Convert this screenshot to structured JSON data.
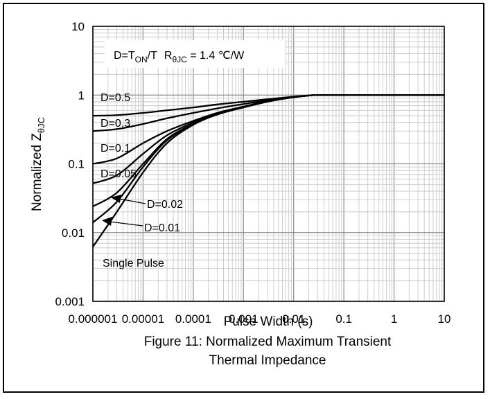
{
  "chart_data": {
    "type": "line",
    "x_scale": "log",
    "y_scale": "log",
    "xlim": [
      1e-06,
      10
    ],
    "ylim": [
      0.001,
      10
    ],
    "grid": true,
    "xlabel": "Pulse Width (s)",
    "ylabel": {
      "main": "Normalized Z",
      "sub": "θJC"
    },
    "x_ticks": [
      "0.000001",
      "0.00001",
      "0.0001",
      "0.001",
      "0.01",
      "0.1",
      "1",
      "10"
    ],
    "y_ticks": [
      "10",
      "1",
      "0.1",
      "0.01",
      "0.001"
    ],
    "annotation": {
      "d_part": "D=T",
      "d_sub": "ON",
      "d_tail": "/T",
      "r_part": "R",
      "r_sub": "θJC",
      "r_tail": " = 1.4 ℃/W"
    },
    "caption_line1": "Figure 11: Normalized Maximum Transient",
    "caption_line2": "Thermal Impedance",
    "series": [
      {
        "name": "D=0.5",
        "x": [
          1e-06,
          3e-06,
          1e-05,
          3e-05,
          0.0001,
          0.0003,
          0.001,
          0.003,
          0.01,
          0.025,
          10
        ],
        "y": [
          0.5,
          0.51,
          0.55,
          0.6,
          0.66,
          0.73,
          0.8,
          0.87,
          0.95,
          1.0,
          1.0
        ]
      },
      {
        "name": "D=0.3",
        "x": [
          1e-06,
          3e-06,
          1e-05,
          3e-05,
          0.0001,
          0.0003,
          0.001,
          0.003,
          0.01,
          0.025,
          10
        ],
        "y": [
          0.3,
          0.32,
          0.38,
          0.46,
          0.55,
          0.64,
          0.74,
          0.84,
          0.94,
          1.0,
          1.0
        ]
      },
      {
        "name": "D=0.1",
        "x": [
          1e-06,
          3e-06,
          1e-05,
          3e-05,
          0.0001,
          0.0003,
          0.001,
          0.003,
          0.01,
          0.025,
          10
        ],
        "y": [
          0.1,
          0.12,
          0.2,
          0.3,
          0.42,
          0.55,
          0.68,
          0.82,
          0.93,
          1.0,
          1.0
        ]
      },
      {
        "name": "D=0.05",
        "x": [
          1e-06,
          3e-06,
          1e-05,
          3e-05,
          0.0001,
          0.0003,
          0.001,
          0.003,
          0.01,
          0.025,
          10
        ],
        "y": [
          0.052,
          0.068,
          0.14,
          0.26,
          0.4,
          0.54,
          0.67,
          0.81,
          0.93,
          1.0,
          1.0
        ]
      },
      {
        "name": "D=0.02",
        "x": [
          1e-06,
          3e-06,
          1e-05,
          3e-05,
          0.0001,
          0.0003,
          0.001,
          0.003,
          0.01,
          0.025,
          10
        ],
        "y": [
          0.024,
          0.038,
          0.1,
          0.23,
          0.38,
          0.53,
          0.67,
          0.81,
          0.93,
          1.0,
          1.0
        ]
      },
      {
        "name": "D=0.01",
        "x": [
          1e-06,
          3e-06,
          1e-05,
          3e-05,
          0.0001,
          0.0003,
          0.001,
          0.003,
          0.01,
          0.025,
          10
        ],
        "y": [
          0.014,
          0.028,
          0.09,
          0.22,
          0.38,
          0.53,
          0.67,
          0.81,
          0.93,
          1.0,
          1.0
        ]
      },
      {
        "name": "Single Pulse",
        "x": [
          1e-06,
          3e-06,
          1e-05,
          3e-05,
          0.0001,
          0.0003,
          0.001,
          0.003,
          0.01,
          0.025,
          10
        ],
        "y": [
          0.0062,
          0.02,
          0.075,
          0.2,
          0.37,
          0.52,
          0.66,
          0.8,
          0.93,
          1.0,
          1.0
        ]
      }
    ]
  }
}
